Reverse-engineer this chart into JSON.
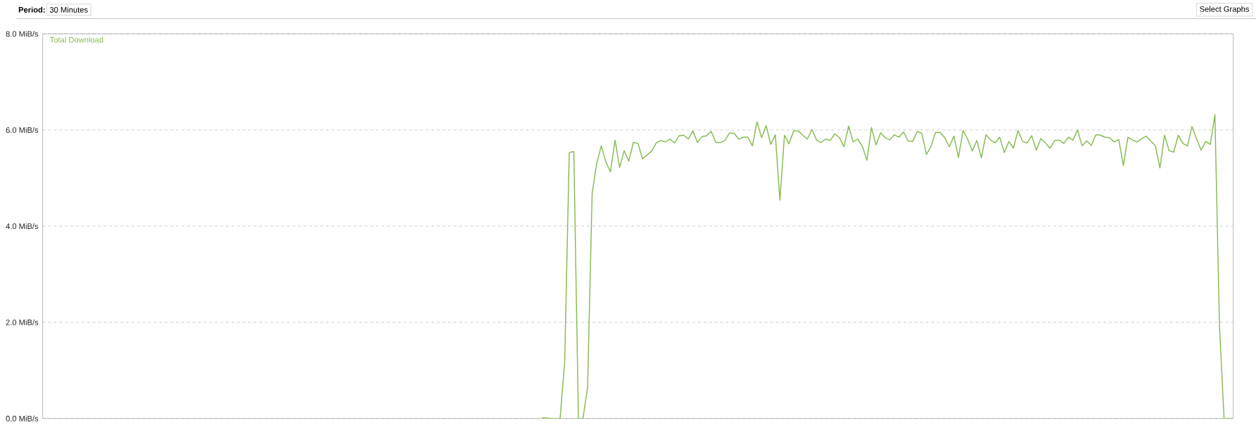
{
  "chart_data": {
    "type": "line",
    "annotations": [
      "Period:",
      "30 Minutes",
      "Select Graphs"
    ],
    "categories": [
      null,
      null,
      null,
      null,
      null,
      null,
      null,
      null,
      null,
      null,
      null,
      null,
      null,
      null,
      null,
      null,
      null,
      null,
      null,
      null,
      null,
      null,
      null,
      null,
      null,
      null,
      null,
      null,
      null,
      null,
      null,
      null,
      null,
      null,
      null,
      null,
      null,
      null,
      null,
      null,
      null,
      null,
      null,
      null,
      null,
      null,
      null,
      null,
      null,
      null,
      null,
      null,
      null,
      null,
      null,
      null,
      null,
      null,
      null,
      null,
      null,
      null,
      null,
      null,
      null,
      null,
      null,
      null,
      null,
      null,
      null,
      null,
      null,
      null,
      null,
      null,
      null,
      null,
      null,
      null,
      null,
      null,
      null,
      null,
      null,
      null,
      null,
      null,
      null,
      null,
      null,
      null,
      null,
      null,
      null,
      null,
      null,
      null,
      null,
      null,
      null,
      null,
      null,
      null,
      null,
      null,
      null,
      null,
      null,
      null,
      null,
      null,
      null,
      null,
      null,
      null,
      null,
      null,
      null,
      null,
      null,
      null,
      null,
      null,
      null,
      null,
      null,
      null,
      null,
      null,
      null,
      null,
      null,
      null,
      null,
      null,
      null,
      null,
      null,
      null,
      null,
      null,
      null,
      null,
      null,
      null,
      null,
      null,
      null,
      null,
      null,
      null,
      null,
      null,
      null,
      null,
      null,
      null,
      null,
      null,
      null,
      null,
      null,
      null,
      null,
      null,
      null,
      null,
      null,
      null,
      null,
      null,
      null,
      null,
      null,
      null,
      null,
      null,
      null,
      null,
      null,
      null,
      null,
      null,
      null,
      null,
      null,
      null,
      null,
      null,
      null,
      null,
      null,
      null,
      null,
      null,
      null,
      null,
      null,
      null,
      null,
      null,
      null,
      null,
      null,
      null,
      null,
      null,
      null,
      null,
      null,
      null,
      null,
      null,
      null,
      null,
      null,
      null,
      null,
      null,
      null,
      null,
      null,
      null,
      null,
      null,
      null,
      null,
      null,
      null,
      null,
      null,
      null,
      null,
      null,
      null,
      null,
      null,
      null,
      null,
      null,
      null,
      null,
      null,
      null,
      null,
      null,
      null,
      null,
      null,
      null,
      null,
      null,
      null,
      null,
      null,
      null,
      null,
      null,
      null,
      null
    ],
    "series": [
      {
        "name": "Total Download",
        "color": "#85bb4f",
        "values": [
          null,
          null,
          null,
          null,
          null,
          null,
          null,
          null,
          null,
          null,
          null,
          null,
          null,
          null,
          null,
          null,
          null,
          null,
          null,
          null,
          null,
          null,
          null,
          null,
          null,
          null,
          null,
          null,
          null,
          null,
          null,
          null,
          null,
          null,
          null,
          null,
          null,
          null,
          null,
          null,
          null,
          null,
          null,
          null,
          null,
          null,
          null,
          null,
          null,
          null,
          null,
          null,
          null,
          null,
          null,
          null,
          null,
          null,
          null,
          null,
          null,
          null,
          null,
          null,
          null,
          null,
          null,
          null,
          null,
          null,
          null,
          null,
          null,
          null,
          null,
          null,
          null,
          null,
          null,
          null,
          null,
          null,
          null,
          null,
          null,
          null,
          null,
          null,
          null,
          null,
          null,
          null,
          null,
          null,
          null,
          null,
          null,
          null,
          null,
          null,
          null,
          null,
          null,
          null,
          null,
          null,
          null,
          null,
          null,
          0.01,
          0.01,
          0.0,
          0.0,
          0.0,
          1.17,
          5.53,
          5.55,
          0.0,
          0.0,
          0.64,
          4.68,
          5.31,
          5.67,
          5.33,
          5.13,
          5.79,
          5.22,
          5.57,
          5.35,
          5.74,
          5.72,
          5.4,
          5.48,
          5.56,
          5.73,
          5.78,
          5.75,
          5.81,
          5.73,
          5.88,
          5.89,
          5.81,
          5.98,
          5.74,
          5.86,
          5.88,
          5.97,
          5.74,
          5.74,
          5.78,
          5.94,
          5.93,
          5.81,
          5.85,
          5.85,
          5.67,
          6.17,
          5.84,
          6.09,
          5.7,
          5.9,
          4.54,
          5.89,
          5.71,
          5.98,
          5.98,
          5.89,
          5.81,
          6.01,
          5.79,
          5.74,
          5.81,
          5.78,
          5.92,
          5.84,
          5.65,
          6.08,
          5.75,
          5.81,
          5.66,
          5.37,
          6.05,
          5.69,
          5.94,
          5.84,
          5.79,
          5.9,
          5.85,
          5.96,
          5.77,
          5.76,
          5.97,
          5.93,
          5.49,
          5.66,
          5.95,
          5.95,
          5.84,
          5.65,
          5.87,
          5.43,
          5.99,
          5.81,
          5.56,
          5.78,
          5.42,
          5.9,
          5.79,
          5.73,
          5.85,
          5.53,
          5.76,
          5.62,
          5.99,
          5.76,
          5.73,
          5.88,
          5.58,
          5.82,
          5.73,
          5.62,
          5.78,
          5.79,
          5.72,
          5.85,
          5.79,
          6.0,
          5.67,
          5.77,
          5.68,
          5.9,
          5.89,
          5.85,
          5.84,
          5.75,
          5.8,
          5.26,
          5.85,
          5.79,
          5.75,
          5.82,
          5.87,
          5.77,
          5.67,
          5.21,
          5.89,
          5.57,
          5.54,
          5.89,
          5.72,
          5.67,
          6.07,
          5.81,
          5.58,
          5.76,
          5.7,
          6.32,
          1.92,
          0.0,
          0.0,
          0.0
        ]
      }
    ],
    "ylim": [
      0,
      8
    ],
    "yticks": [
      {
        "value": 0,
        "label": "0.0 MiB/s"
      },
      {
        "value": 2,
        "label": "2.0 MiB/s"
      },
      {
        "value": 4,
        "label": "4.0 MiB/s"
      },
      {
        "value": 6,
        "label": "6.0 MiB/s"
      },
      {
        "value": 8,
        "label": "8.0 MiB/s"
      }
    ],
    "tick_labels": "y",
    "grid": "y",
    "marker": "none"
  }
}
